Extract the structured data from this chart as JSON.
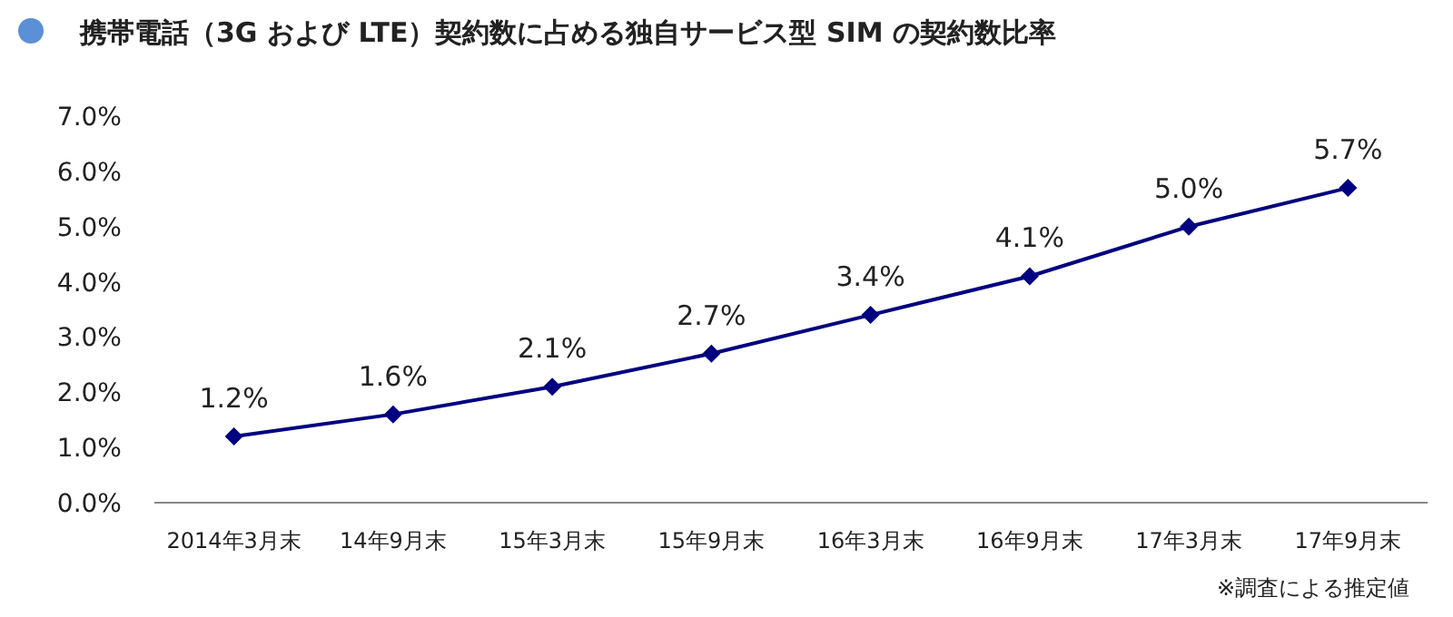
{
  "chart_data": {
    "type": "line",
    "title": "携帯電話（3G および LTE）契約数に占める独自サービス型 SIM の契約数比率",
    "categories": [
      "2014年3月末",
      "14年9月末",
      "15年3月末",
      "15年9月末",
      "16年3月末",
      "16年9月末",
      "17年3月末",
      "17年9月末"
    ],
    "values": [
      1.2,
      1.6,
      2.1,
      2.7,
      3.4,
      4.1,
      5.0,
      5.7
    ],
    "value_labels": [
      "1.2%",
      "1.6%",
      "2.1%",
      "2.7%",
      "3.4%",
      "4.1%",
      "5.0%",
      "5.7%"
    ],
    "color": "#000080",
    "marker": "diamond",
    "ylim": [
      0,
      7
    ],
    "yticks": [
      {
        "value": 0,
        "label": "0.0%"
      },
      {
        "value": 1,
        "label": "1.0%"
      },
      {
        "value": 2,
        "label": "2.0%"
      },
      {
        "value": 3,
        "label": "3.0%"
      },
      {
        "value": 4,
        "label": "4.0%"
      },
      {
        "value": 5,
        "label": "5.0%"
      },
      {
        "value": 6,
        "label": "6.0%"
      },
      {
        "value": 7,
        "label": "7.0%"
      }
    ],
    "annotations": [
      "※調査による推定値"
    ]
  }
}
